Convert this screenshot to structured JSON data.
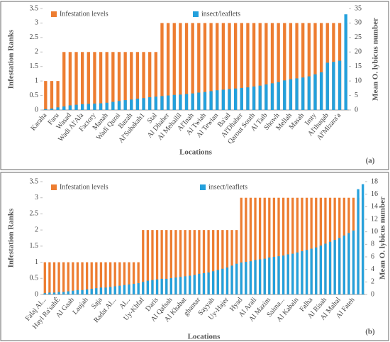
{
  "chart_data": [
    {
      "type": "bar",
      "panel_label": "(a)",
      "xlabel": "Locations",
      "ylabel": "Infestation Ranks",
      "y2label": "Mean O. lybicus number",
      "categories": [
        "Karaha",
        null,
        "Faru",
        null,
        "Wasad",
        null,
        "Wadi Al'Ala",
        null,
        "Factory",
        null,
        "Manah",
        null,
        "Wadi Qurai",
        null,
        "Bazah",
        null,
        "Al'Subakah1",
        null,
        "Stal",
        null,
        "Al Dhaher",
        null,
        "Al Mehailil",
        null,
        "Al'Inah",
        null,
        "Al Twiah",
        null,
        "Al Tewian",
        null,
        "Ba'ad",
        null,
        "Al'Dhaher",
        null,
        "Qarout South",
        null,
        "Al Taib",
        null,
        "Showh",
        null,
        "Mellah",
        null,
        "Masah",
        null,
        "Imty",
        null,
        "Al'thuqab",
        null,
        "Al'Mizara'a",
        null
      ],
      "series": [
        {
          "name": "Infestation levels",
          "color": "#ed7d31",
          "axis": "y",
          "values": [
            1,
            1,
            1,
            2,
            2,
            2,
            2,
            2,
            2,
            2,
            2,
            2,
            2,
            2,
            2,
            2,
            2,
            2,
            2,
            3,
            3,
            3,
            3,
            3,
            3,
            3,
            3,
            3,
            3,
            3,
            3,
            3,
            3,
            3,
            3,
            3,
            3,
            3,
            3,
            3,
            3,
            3,
            3,
            3,
            3,
            3,
            3,
            3,
            3,
            3
          ]
        },
        {
          "name": "insect/leaflets",
          "color": "#23a0dc",
          "axis": "y2",
          "values": [
            0.3,
            0.5,
            0.9,
            1.2,
            1.6,
            1.8,
            2.0,
            2.1,
            2.2,
            2.3,
            2.5,
            2.8,
            3.1,
            3.4,
            3.6,
            3.9,
            4.1,
            4.4,
            4.6,
            4.8,
            5.0,
            5.2,
            5.3,
            5.5,
            5.7,
            6.0,
            6.2,
            6.5,
            6.8,
            7.0,
            7.2,
            7.4,
            7.6,
            7.8,
            8.1,
            8.4,
            8.8,
            9.2,
            9.6,
            10.2,
            10.6,
            10.9,
            11.2,
            11.6,
            12.3,
            13.0,
            16.3,
            16.6,
            17.0,
            33.0
          ]
        }
      ],
      "ylim": [
        0,
        3.5
      ],
      "yticks": [
        0,
        0.5,
        1,
        1.5,
        2,
        2.5,
        3,
        3.5
      ],
      "y2lim": [
        0,
        35
      ],
      "y2ticks": [
        0,
        5,
        10,
        15,
        20,
        25,
        30,
        35
      ]
    },
    {
      "type": "bar",
      "panel_label": "(b)",
      "xlabel": "Locations",
      "ylabel": "Infestation Ranks",
      "y2label": "Mean O. lybicus number",
      "categories": [
        "Falaj Al...",
        null,
        null,
        "Hayl Ra'sahÊ",
        null,
        null,
        "Al Gaab",
        null,
        null,
        "Laujah",
        null,
        null,
        "Saja",
        null,
        null,
        "Radat Al...",
        null,
        null,
        "Al...",
        null,
        null,
        "Uy-Khfaf",
        null,
        null,
        "Daris",
        null,
        null,
        "Al Qafsah",
        null,
        null,
        "Al Khabat",
        null,
        null,
        "ghamar",
        null,
        null,
        "Sayyah",
        null,
        null,
        "Uy-Hajer",
        null,
        null,
        "Hyad",
        null,
        null,
        "Al Arali",
        null,
        null,
        "Al Mazim",
        null,
        null,
        "Saima...",
        null,
        null,
        "Al Kabain",
        null,
        null,
        "Falha",
        null,
        null,
        "Al Risah",
        null,
        null,
        "Al Mahal",
        null,
        null,
        "Al Fateh",
        null,
        null
      ],
      "series": [
        {
          "name": "Infestation levels",
          "color": "#ed7d31",
          "axis": "y",
          "values": [
            1,
            1,
            1,
            1,
            1,
            1,
            1,
            1,
            1,
            1,
            1,
            1,
            1,
            1,
            1,
            1,
            1,
            1,
            1,
            1,
            1,
            2,
            2,
            2,
            2,
            2,
            2,
            2,
            2,
            2,
            2,
            2,
            2,
            2,
            2,
            2,
            2,
            2,
            2,
            2,
            2,
            2,
            3,
            3,
            3,
            3,
            3,
            3,
            3,
            3,
            3,
            3,
            3,
            3,
            3,
            3,
            3,
            3,
            3,
            3,
            3,
            3,
            3,
            3,
            3,
            3,
            3,
            3,
            3
          ]
        },
        {
          "name": "insect/leaflets",
          "color": "#23a0dc",
          "axis": "y2",
          "values": [
            0.2,
            0.3,
            0.3,
            0.4,
            0.4,
            0.5,
            0.6,
            0.7,
            0.7,
            0.8,
            0.9,
            1.0,
            1.1,
            1.1,
            1.2,
            1.3,
            1.4,
            1.5,
            1.6,
            1.7,
            1.8,
            2.0,
            2.2,
            2.3,
            2.4,
            2.5,
            2.5,
            2.6,
            2.7,
            2.8,
            2.9,
            3.0,
            3.1,
            3.3,
            3.4,
            3.5,
            3.7,
            3.9,
            4.1,
            4.3,
            4.6,
            4.9,
            5.1,
            5.2,
            5.3,
            5.5,
            5.6,
            5.7,
            5.9,
            6.0,
            6.1,
            6.2,
            6.4,
            6.5,
            6.7,
            6.9,
            7.1,
            7.3,
            7.5,
            7.8,
            8.1,
            8.4,
            8.7,
            9.0,
            9.4,
            9.8,
            10.2,
            16.8,
            17.6
          ]
        }
      ],
      "ylim": [
        0,
        3.5
      ],
      "yticks": [
        0,
        0.5,
        1,
        1.5,
        2,
        2.5,
        3,
        3.5
      ],
      "y2lim": [
        0,
        18
      ],
      "y2ticks": [
        0,
        2,
        4,
        6,
        8,
        10,
        12,
        14,
        16,
        18
      ]
    }
  ]
}
